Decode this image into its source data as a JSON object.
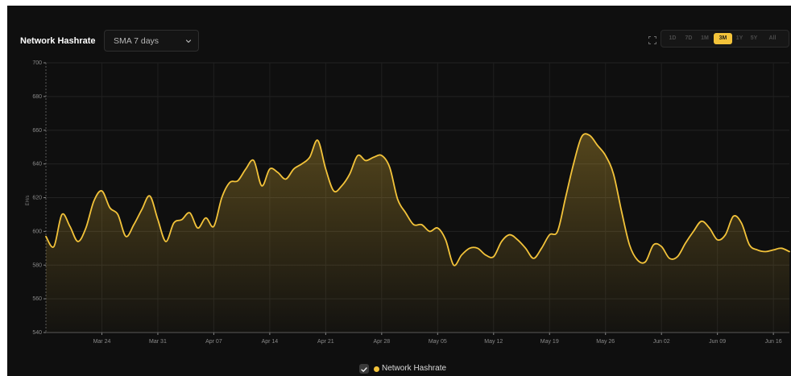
{
  "header": {
    "title": "Network Hashrate",
    "dropdown_value": "SMA 7 days"
  },
  "range_options": [
    "1D",
    "7D",
    "1M",
    "3M",
    "1Y",
    "5Y",
    "All"
  ],
  "range_active": "3M",
  "legend": {
    "label": "Network Hashrate"
  },
  "colors": {
    "line": "#f3c33a",
    "background": "#0f0f0f",
    "accent": "#f3c33a"
  },
  "chart_data": {
    "type": "area",
    "title": "Network Hashrate",
    "xlabel": "",
    "ylabel": "EH/s",
    "ylim": [
      540,
      700
    ],
    "xlim": [
      "2024-03-17",
      "2024-06-18"
    ],
    "grid": true,
    "legend_position": "bottom",
    "y_ticks": [
      540,
      560,
      580,
      600,
      620,
      640,
      660,
      680,
      700
    ],
    "x_ticks": [
      {
        "date": "2024-03-24",
        "label": "Mar 24"
      },
      {
        "date": "2024-03-31",
        "label": "Mar 31"
      },
      {
        "date": "2024-04-07",
        "label": "Apr 07"
      },
      {
        "date": "2024-04-14",
        "label": "Apr 14"
      },
      {
        "date": "2024-04-21",
        "label": "Apr 21"
      },
      {
        "date": "2024-04-28",
        "label": "Apr 28"
      },
      {
        "date": "2024-05-05",
        "label": "May 05"
      },
      {
        "date": "2024-05-12",
        "label": "May 12"
      },
      {
        "date": "2024-05-19",
        "label": "May 19"
      },
      {
        "date": "2024-05-26",
        "label": "May 26"
      },
      {
        "date": "2024-06-02",
        "label": "Jun 02"
      },
      {
        "date": "2024-06-09",
        "label": "Jun 09"
      },
      {
        "date": "2024-06-16",
        "label": "Jun 16"
      }
    ],
    "series": [
      {
        "name": "Network Hashrate",
        "x": [
          "2024-03-17",
          "2024-03-18",
          "2024-03-19",
          "2024-03-20",
          "2024-03-21",
          "2024-03-22",
          "2024-03-23",
          "2024-03-24",
          "2024-03-25",
          "2024-03-26",
          "2024-03-27",
          "2024-03-28",
          "2024-03-29",
          "2024-03-30",
          "2024-03-31",
          "2024-04-01",
          "2024-04-02",
          "2024-04-03",
          "2024-04-04",
          "2024-04-05",
          "2024-04-06",
          "2024-04-07",
          "2024-04-08",
          "2024-04-09",
          "2024-04-10",
          "2024-04-11",
          "2024-04-12",
          "2024-04-13",
          "2024-04-14",
          "2024-04-15",
          "2024-04-16",
          "2024-04-17",
          "2024-04-18",
          "2024-04-19",
          "2024-04-20",
          "2024-04-21",
          "2024-04-22",
          "2024-04-23",
          "2024-04-24",
          "2024-04-25",
          "2024-04-26",
          "2024-04-27",
          "2024-04-28",
          "2024-04-29",
          "2024-04-30",
          "2024-05-01",
          "2024-05-02",
          "2024-05-03",
          "2024-05-04",
          "2024-05-05",
          "2024-05-06",
          "2024-05-07",
          "2024-05-08",
          "2024-05-09",
          "2024-05-10",
          "2024-05-11",
          "2024-05-12",
          "2024-05-13",
          "2024-05-14",
          "2024-05-15",
          "2024-05-16",
          "2024-05-17",
          "2024-05-18",
          "2024-05-19",
          "2024-05-20",
          "2024-05-21",
          "2024-05-22",
          "2024-05-23",
          "2024-05-24",
          "2024-05-25",
          "2024-05-26",
          "2024-05-27",
          "2024-05-28",
          "2024-05-29",
          "2024-05-30",
          "2024-05-31",
          "2024-06-01",
          "2024-06-02",
          "2024-06-03",
          "2024-06-04",
          "2024-06-05",
          "2024-06-06",
          "2024-06-07",
          "2024-06-08",
          "2024-06-09",
          "2024-06-10",
          "2024-06-11",
          "2024-06-12",
          "2024-06-13",
          "2024-06-14",
          "2024-06-15",
          "2024-06-16",
          "2024-06-17",
          "2024-06-18"
        ],
        "values": [
          597,
          591,
          610,
          603,
          594,
          602,
          618,
          624,
          614,
          610,
          597,
          604,
          613,
          621,
          607,
          594,
          605,
          607,
          611,
          602,
          608,
          603,
          620,
          629,
          630,
          637,
          642,
          627,
          637,
          635,
          631,
          637,
          640,
          644,
          654,
          637,
          624,
          627,
          634,
          645,
          642,
          644,
          645,
          638,
          619,
          611,
          604,
          604,
          600,
          602,
          595,
          580,
          586,
          590,
          590,
          586,
          585,
          594,
          598,
          595,
          590,
          584,
          590,
          598,
          600,
          620,
          640,
          656,
          657,
          651,
          645,
          634,
          612,
          592,
          583,
          582,
          592,
          591,
          584,
          585,
          593,
          600,
          606,
          602,
          595,
          598,
          609,
          605,
          592,
          589,
          588,
          589,
          590,
          588
        ]
      }
    ]
  }
}
